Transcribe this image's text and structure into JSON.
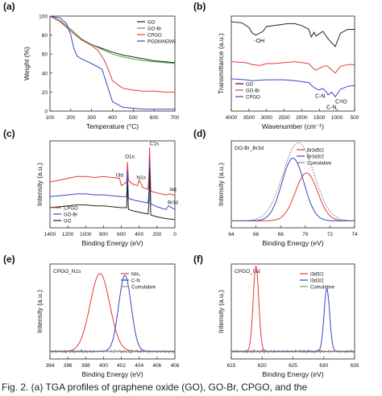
{
  "caption": "Fig. 2. (a) TGA profiles of graphene oxide (GO), GO-Br, CPGO, and the",
  "chart_data": [
    {
      "id": "a",
      "panel_label": "(a)",
      "type": "line",
      "xlabel": "Temperature (°C)",
      "ylabel": "Weight (%)",
      "xlim": [
        100,
        700
      ],
      "ylim": [
        0,
        100
      ],
      "xticks": [
        "100",
        "200",
        "300",
        "400",
        "500",
        "600",
        "700"
      ],
      "yticks": [
        "0",
        "20",
        "40",
        "60",
        "80",
        "100"
      ],
      "legend_position": "top-right",
      "series": [
        {
          "name": "GO",
          "color": "#222222",
          "x": [
            100,
            150,
            200,
            250,
            300,
            350,
            400,
            450,
            500,
            550,
            600,
            650,
            700
          ],
          "y": [
            100,
            95,
            86,
            76,
            70,
            66,
            62,
            59,
            57,
            55,
            53,
            52,
            51
          ]
        },
        {
          "name": "GO-Br",
          "color": "#3fa64a",
          "x": [
            100,
            150,
            200,
            250,
            300,
            350,
            400,
            450,
            500,
            550,
            600,
            650,
            700
          ],
          "y": [
            100,
            95,
            86,
            76,
            70,
            65,
            60,
            57,
            55,
            53,
            52,
            51,
            50
          ]
        },
        {
          "name": "CPGO",
          "color": "#e23b3b",
          "x": [
            100,
            150,
            200,
            250,
            300,
            330,
            360,
            380,
            400,
            450,
            500,
            550,
            600,
            650,
            700
          ],
          "y": [
            100,
            94,
            84,
            75,
            69,
            64,
            54,
            44,
            32,
            24,
            22,
            21,
            21,
            20,
            20
          ]
        },
        {
          "name": "PGDMAEMA",
          "color": "#3a44c9",
          "x": [
            100,
            150,
            180,
            200,
            215,
            230,
            250,
            300,
            350,
            400,
            450,
            500,
            550,
            600,
            700
          ],
          "y": [
            100,
            98,
            92,
            80,
            66,
            58,
            55,
            50,
            44,
            10,
            4,
            3,
            2,
            2,
            2
          ]
        }
      ]
    },
    {
      "id": "b",
      "panel_label": "(b)",
      "type": "line",
      "xlabel": "Wavenumber (cm⁻¹)",
      "ylabel": "Transmittance (a.u.)",
      "xlim": [
        4000,
        500
      ],
      "xticks": [
        "4000",
        "3500",
        "3000",
        "2500",
        "2000",
        "1500",
        "1000",
        "500"
      ],
      "legend_position": "bottom-left",
      "annotations": [
        "-OH",
        "C-N",
        "C=O",
        "C-N"
      ],
      "series": [
        {
          "name": "GO",
          "color": "#222222",
          "x": [
            4000,
            3700,
            3500,
            3400,
            3300,
            3100,
            3000,
            2800,
            2600,
            2400,
            2200,
            2000,
            1800,
            1730,
            1650,
            1600,
            1400,
            1250,
            1050,
            900,
            700,
            500
          ],
          "y": [
            0.94,
            0.93,
            0.88,
            0.82,
            0.8,
            0.84,
            0.89,
            0.9,
            0.91,
            0.92,
            0.92,
            0.9,
            0.86,
            0.78,
            0.83,
            0.79,
            0.84,
            0.76,
            0.68,
            0.82,
            0.86,
            0.86
          ]
        },
        {
          "name": "GO-Br",
          "color": "#e23b3b",
          "x": [
            4000,
            3600,
            3400,
            3200,
            3000,
            2800,
            2500,
            2200,
            2000,
            1800,
            1700,
            1600,
            1450,
            1300,
            1200,
            1050,
            900,
            700,
            500
          ],
          "y": [
            0.52,
            0.51,
            0.49,
            0.48,
            0.5,
            0.5,
            0.51,
            0.52,
            0.51,
            0.5,
            0.46,
            0.43,
            0.46,
            0.48,
            0.45,
            0.4,
            0.47,
            0.49,
            0.49
          ]
        },
        {
          "name": "CPGO",
          "color": "#3a44c9",
          "x": [
            4000,
            3600,
            3400,
            3000,
            2800,
            2500,
            2200,
            2000,
            1800,
            1720,
            1620,
            1500,
            1400,
            1300,
            1250,
            1150,
            1050,
            900,
            700,
            500
          ],
          "y": [
            0.34,
            0.33,
            0.32,
            0.33,
            0.33,
            0.33,
            0.32,
            0.31,
            0.3,
            0.27,
            0.24,
            0.22,
            0.24,
            0.2,
            0.17,
            0.2,
            0.15,
            0.23,
            0.26,
            0.27
          ]
        }
      ]
    },
    {
      "id": "c",
      "panel_label": "(c)",
      "type": "line",
      "xlabel": "Binding Energy (eV)",
      "ylabel": "Intensity (a.u.)",
      "xlim": [
        1400,
        0
      ],
      "xticks": [
        "1400",
        "1200",
        "1000",
        "800",
        "600",
        "400",
        "200",
        "0"
      ],
      "legend_position": "bottom-left",
      "annotations": [
        "C1s",
        "O1s",
        "I3d",
        "N1s",
        "I4d",
        "Br3d"
      ],
      "series": [
        {
          "name": "CPGO",
          "color": "#e23b3b",
          "x": [
            1400,
            1300,
            1200,
            1100,
            1000,
            900,
            800,
            700,
            620,
            600,
            540,
            532,
            520,
            480,
            420,
            400,
            360,
            300,
            290,
            284,
            270,
            200,
            100,
            50,
            0
          ],
          "y": [
            0.6,
            0.62,
            0.64,
            0.66,
            0.66,
            0.65,
            0.66,
            0.65,
            0.64,
            0.56,
            0.6,
            0.82,
            0.62,
            0.58,
            0.56,
            0.62,
            0.54,
            0.52,
            0.7,
            0.98,
            0.5,
            0.48,
            0.46,
            0.47,
            0.45
          ]
        },
        {
          "name": "GO-Br",
          "color": "#3a44c9",
          "x": [
            1400,
            1300,
            1200,
            1100,
            1000,
            900,
            800,
            700,
            600,
            540,
            532,
            520,
            450,
            400,
            300,
            290,
            284,
            270,
            200,
            100,
            70,
            0
          ],
          "y": [
            0.44,
            0.45,
            0.46,
            0.47,
            0.47,
            0.46,
            0.46,
            0.45,
            0.44,
            0.44,
            0.72,
            0.42,
            0.4,
            0.39,
            0.37,
            0.5,
            0.86,
            0.36,
            0.33,
            0.3,
            0.34,
            0.3
          ]
        },
        {
          "name": "GO",
          "color": "#222222",
          "x": [
            1400,
            1300,
            1200,
            1100,
            1000,
            900,
            800,
            700,
            600,
            540,
            532,
            520,
            450,
            400,
            300,
            290,
            284,
            270,
            200,
            100,
            0
          ],
          "y": [
            0.32,
            0.33,
            0.34,
            0.35,
            0.35,
            0.34,
            0.34,
            0.33,
            0.32,
            0.32,
            0.6,
            0.3,
            0.28,
            0.27,
            0.25,
            0.38,
            0.74,
            0.24,
            0.22,
            0.2,
            0.19
          ]
        }
      ]
    },
    {
      "id": "d",
      "panel_label": "(d)",
      "inner_title": "GO-Br_Br3d",
      "type": "line",
      "xlabel": "Binding Energy (eV)",
      "ylabel": "Intensity (a.u.)",
      "xlim": [
        64,
        74
      ],
      "xticks": [
        "64",
        "66",
        "68",
        "70",
        "72",
        "74"
      ],
      "legend_position": "top-right",
      "series": [
        {
          "name": "Br3d5/2",
          "color": "#e23b3b",
          "center": 70.1,
          "width": 0.9,
          "height": 0.55
        },
        {
          "name": "Br3d3/2",
          "color": "#3a44c9",
          "center": 69.0,
          "width": 0.9,
          "height": 0.72
        },
        {
          "name": "Cumulative",
          "color": "#888888",
          "center": 69.45,
          "width": 1.25,
          "height": 0.9
        }
      ]
    },
    {
      "id": "e",
      "panel_label": "(e)",
      "inner_title": "CPGO_N1s",
      "type": "line",
      "xlabel": "Binding Energy (eV)",
      "ylabel": "Intensity (a.u.)",
      "xlim": [
        394,
        408
      ],
      "xticks": [
        "394",
        "396",
        "398",
        "400",
        "402",
        "404",
        "406",
        "408"
      ],
      "legend_position": "top-right",
      "series": [
        {
          "name": "NH₂",
          "color": "#e23b3b",
          "center": 399.6,
          "width": 1.1,
          "height": 0.82
        },
        {
          "name": "C-N",
          "color": "#3a44c9",
          "center": 402.4,
          "width": 0.7,
          "height": 0.8
        },
        {
          "name": "Cumulative",
          "color": "#888888",
          "center": 400.8,
          "width": 0.0,
          "height": 0.0
        }
      ]
    },
    {
      "id": "f",
      "panel_label": "(f)",
      "inner_title": "CPGO_I3d",
      "type": "line",
      "xlabel": "Binding Energy (eV)",
      "ylabel": "Intensity (a.u.)",
      "xlim": [
        615,
        635
      ],
      "xticks": [
        "615",
        "620",
        "625",
        "630",
        "635"
      ],
      "legend_position": "top-right",
      "series": [
        {
          "name": "I3d5/2",
          "color": "#e23b3b",
          "center": 619.0,
          "width": 0.45,
          "height": 0.9
        },
        {
          "name": "I3d3/2",
          "color": "#3a44c9",
          "center": 630.5,
          "width": 0.45,
          "height": 0.66
        },
        {
          "name": "Cumulative",
          "color": "#888888",
          "center": 625,
          "width": 0,
          "height": 0
        }
      ]
    }
  ]
}
